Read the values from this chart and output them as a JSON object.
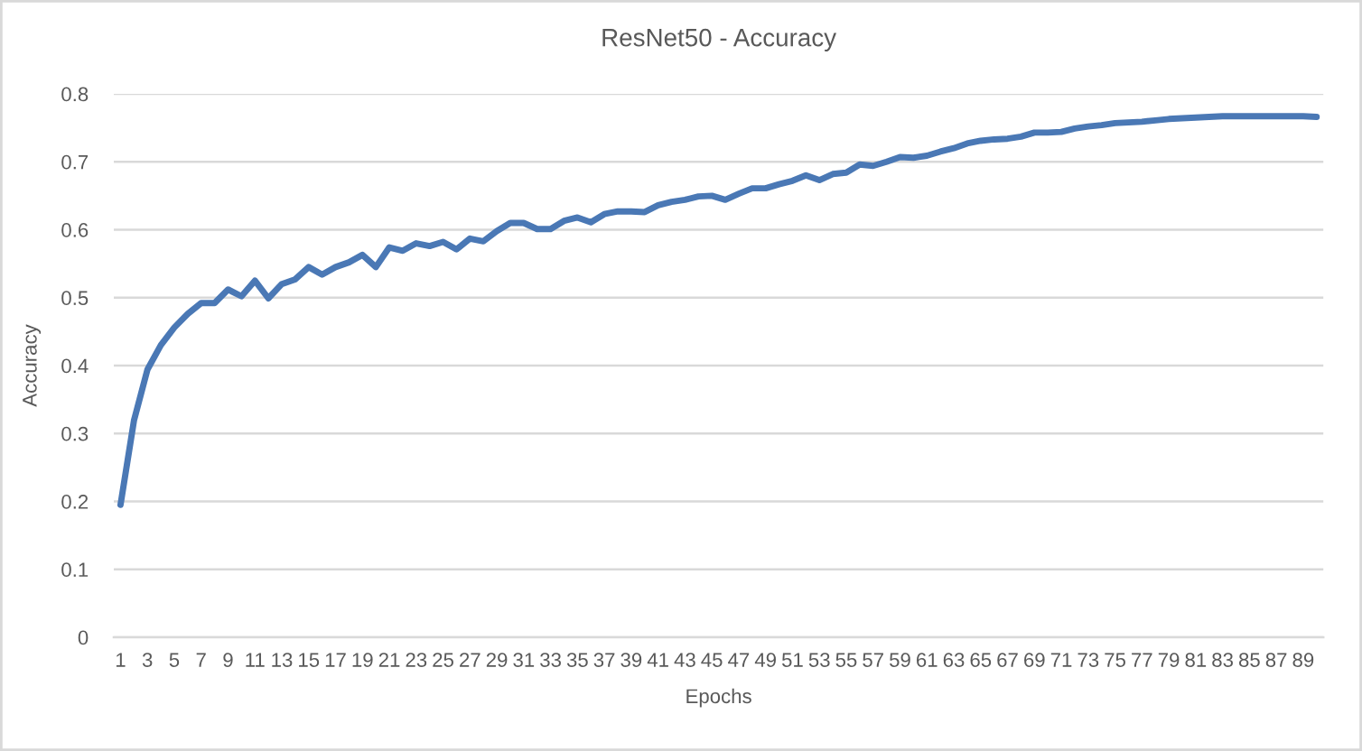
{
  "chart_data": {
    "type": "line",
    "title": "ResNet50 - Accuracy",
    "xlabel": "Epochs",
    "ylabel": "Accuracy",
    "categories": [
      "1",
      null,
      "3",
      null,
      "5",
      null,
      "7",
      null,
      "9",
      null,
      "11",
      null,
      "13",
      null,
      "15",
      null,
      "17",
      null,
      "19",
      null,
      "21",
      null,
      "23",
      null,
      "25",
      null,
      "27",
      null,
      "29",
      null,
      "31",
      null,
      "33",
      null,
      "35",
      null,
      "37",
      null,
      "39",
      null,
      "41",
      null,
      "43",
      null,
      "45",
      null,
      "47",
      null,
      "49",
      null,
      "51",
      null,
      "53",
      null,
      "55",
      null,
      "57",
      null,
      "59",
      null,
      "61",
      null,
      "63",
      null,
      "65",
      null,
      "67",
      null,
      "69",
      null,
      "71",
      null,
      "73",
      null,
      "75",
      null,
      "77",
      null,
      "79",
      null,
      "81",
      null,
      "83",
      null,
      "85",
      null,
      "87",
      null,
      "89",
      null
    ],
    "values": [
      0.195,
      0.319,
      0.394,
      0.43,
      0.456,
      0.476,
      0.492,
      0.492,
      0.512,
      0.502,
      0.525,
      0.499,
      0.52,
      0.527,
      0.545,
      0.534,
      0.545,
      0.552,
      0.563,
      0.545,
      0.574,
      0.569,
      0.58,
      0.576,
      0.582,
      0.571,
      0.587,
      0.583,
      0.598,
      0.61,
      0.61,
      0.601,
      0.601,
      0.613,
      0.618,
      0.611,
      0.623,
      0.627,
      0.627,
      0.626,
      0.636,
      0.641,
      0.644,
      0.649,
      0.65,
      0.644,
      0.653,
      0.661,
      0.661,
      0.667,
      0.672,
      0.68,
      0.673,
      0.682,
      0.684,
      0.696,
      0.694,
      0.7,
      0.707,
      0.706,
      0.709,
      0.715,
      0.72,
      0.727,
      0.731,
      0.733,
      0.734,
      0.737,
      0.743,
      0.743,
      0.744,
      0.749,
      0.752,
      0.754,
      0.757,
      0.758,
      0.759,
      0.761,
      0.763,
      0.764,
      0.765,
      0.766,
      0.767,
      0.767,
      0.767,
      0.767,
      0.767,
      0.767,
      0.767,
      0.766
    ],
    "color": "#4a78b5",
    "ylim": [
      0,
      0.8
    ],
    "yticks": [
      0,
      0.1,
      0.2,
      0.3,
      0.4,
      0.5,
      0.6,
      0.7,
      0.8
    ],
    "grid": "y"
  }
}
